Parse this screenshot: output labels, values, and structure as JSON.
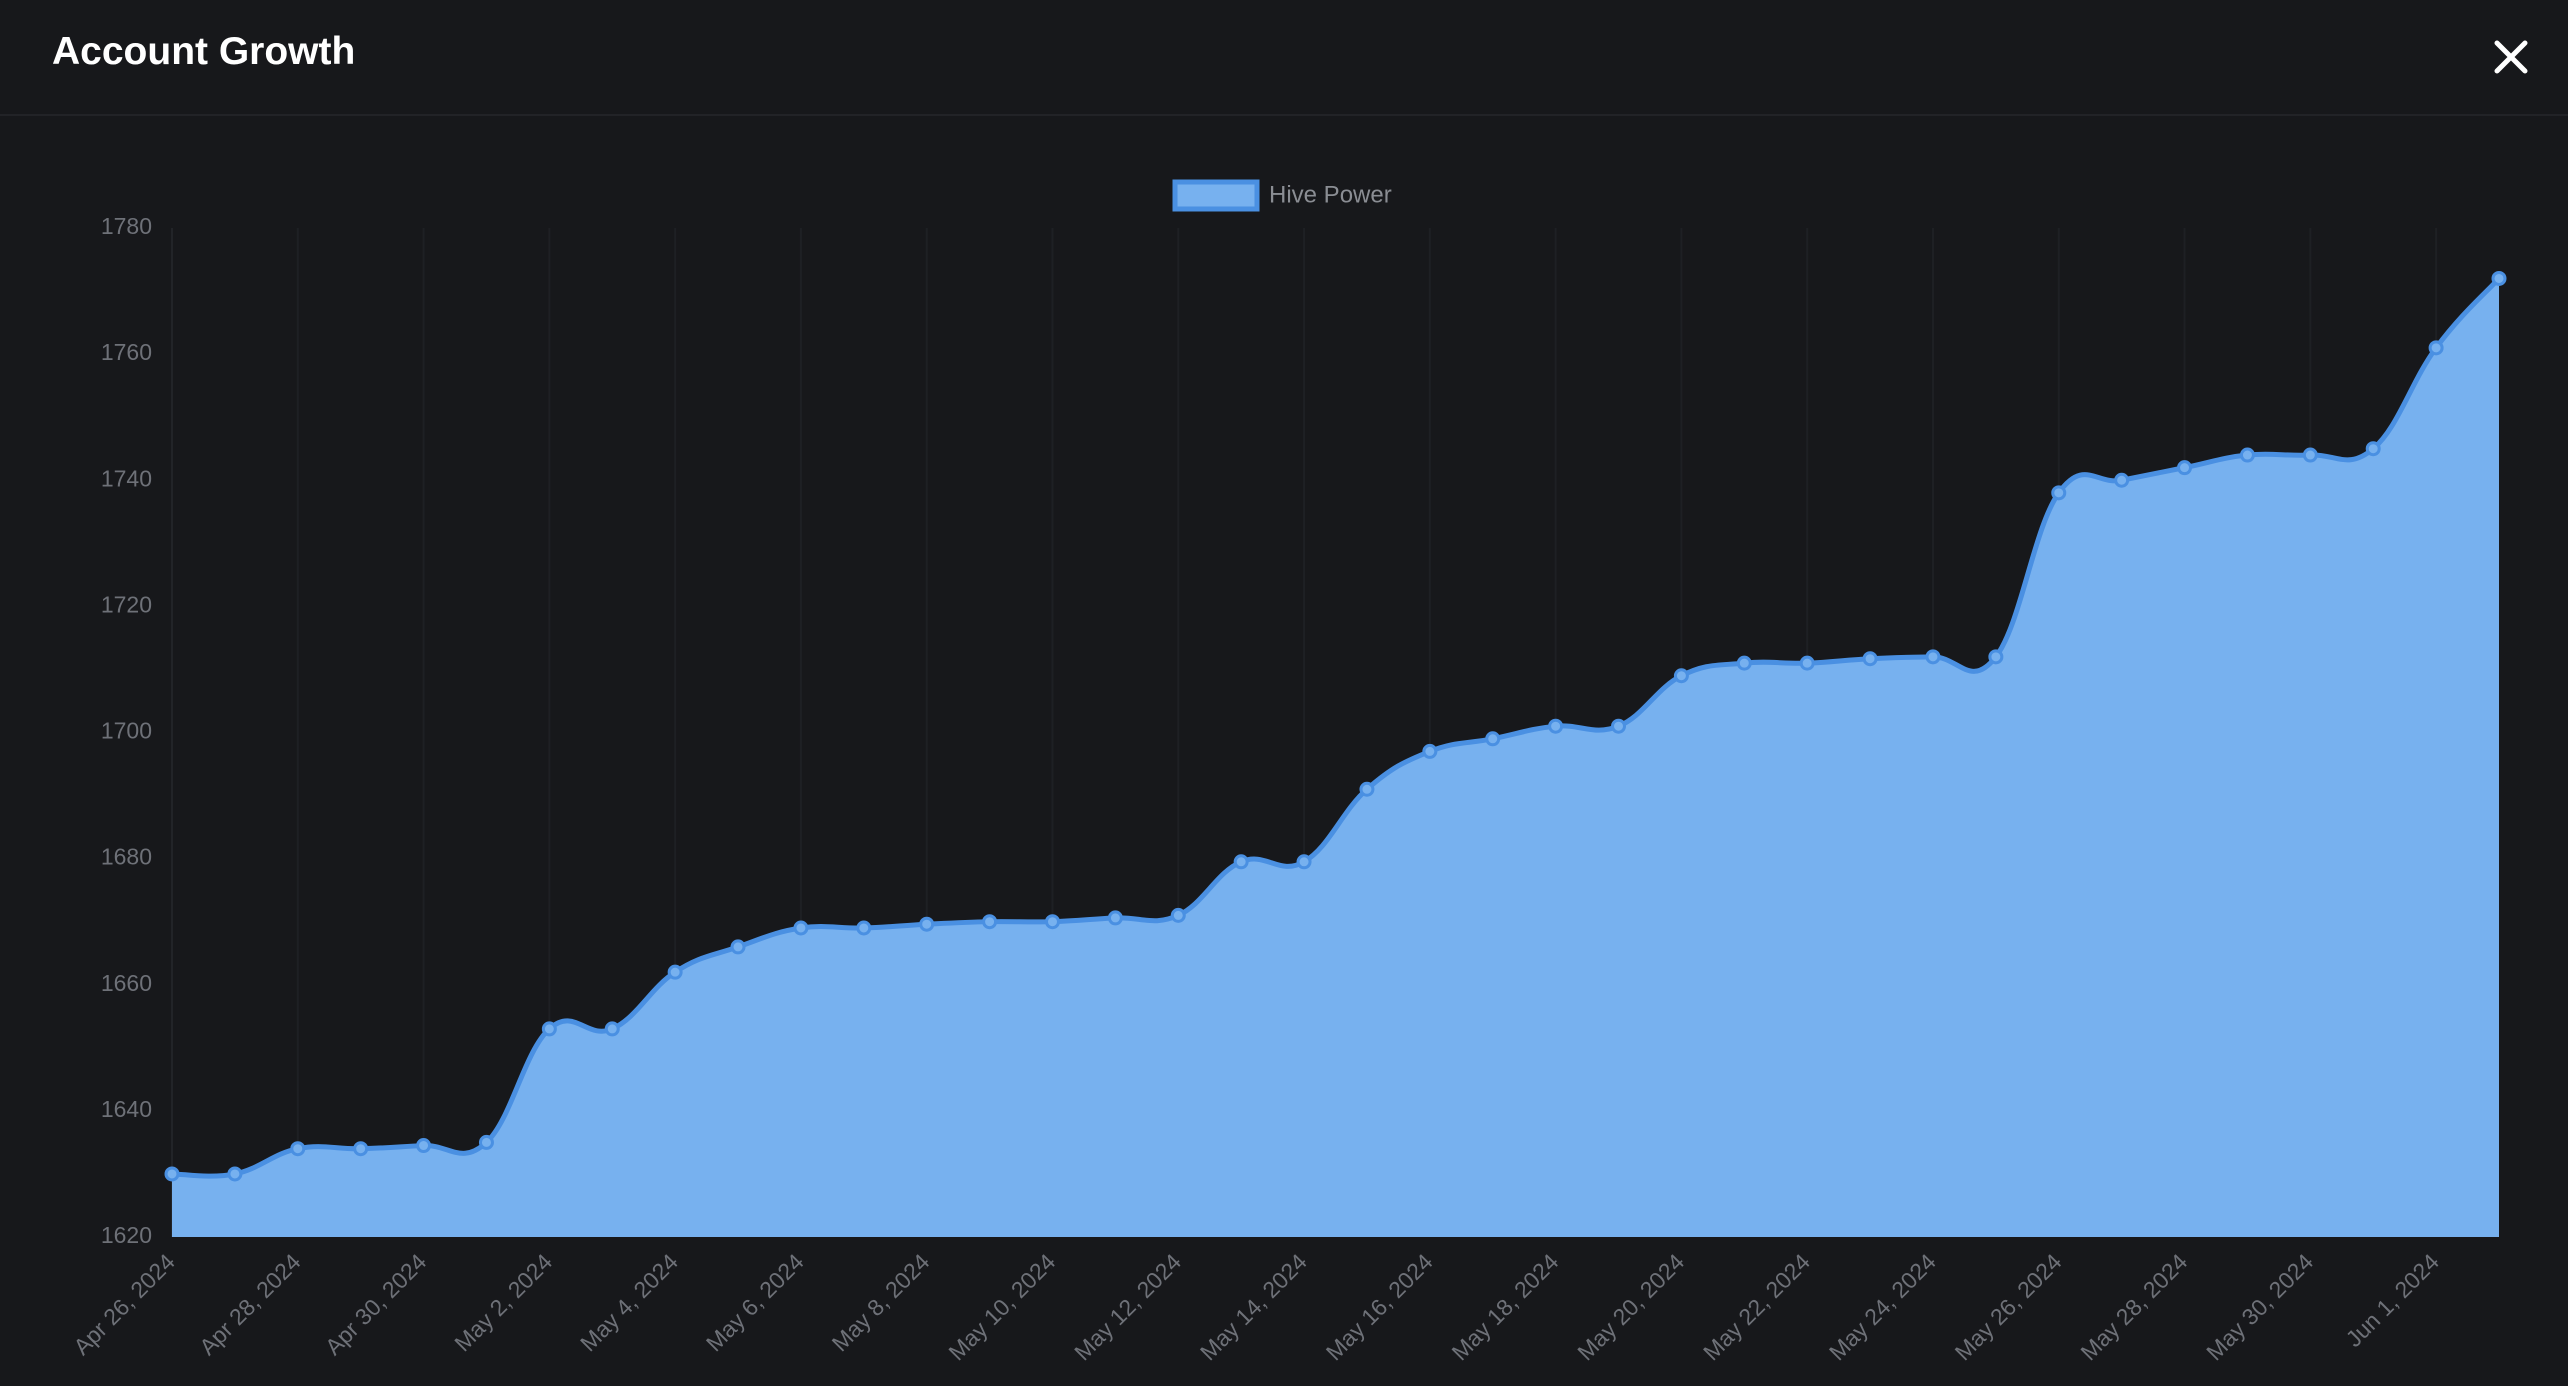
{
  "chart_data": {
    "type": "area",
    "title": "Account Growth",
    "categories": [
      "Apr 26, 2024",
      null,
      "Apr 28, 2024",
      null,
      "Apr 30, 2024",
      null,
      "May 2, 2024",
      null,
      "May 4, 2024",
      null,
      "May 6, 2024",
      null,
      "May 8, 2024",
      null,
      "May 10, 2024",
      null,
      "May 12, 2024",
      null,
      "May 14, 2024",
      null,
      "May 16, 2024",
      null,
      "May 18, 2024",
      null,
      "May 20, 2024",
      null,
      "May 22, 2024",
      null,
      "May 24, 2024",
      null,
      "May 26, 2024",
      null,
      "May 28, 2024",
      null,
      "May 30, 2024",
      null,
      "Jun 1, 2024",
      null
    ],
    "series": [
      {
        "name": "Hive Power",
        "color": "#4a90e2",
        "fill": "#77b1ef",
        "values": [
          1630,
          1630,
          1634,
          1634,
          1634.5,
          1635,
          1653,
          1653,
          1662,
          1666,
          1669,
          1669,
          1669.6,
          1670,
          1670,
          1670.6,
          1671,
          1679.5,
          1679.5,
          1691,
          1697,
          1699,
          1701,
          1701,
          1709,
          1711,
          1711,
          1711.7,
          1712,
          1712,
          1738,
          1740,
          1742,
          1744,
          1744,
          1745,
          1761,
          1772
        ]
      }
    ],
    "ylim": [
      1620,
      1780
    ],
    "yticks": [
      1620,
      1640,
      1660,
      1680,
      1700,
      1720,
      1740,
      1760,
      1780
    ],
    "grid": true,
    "legend": "top"
  }
}
